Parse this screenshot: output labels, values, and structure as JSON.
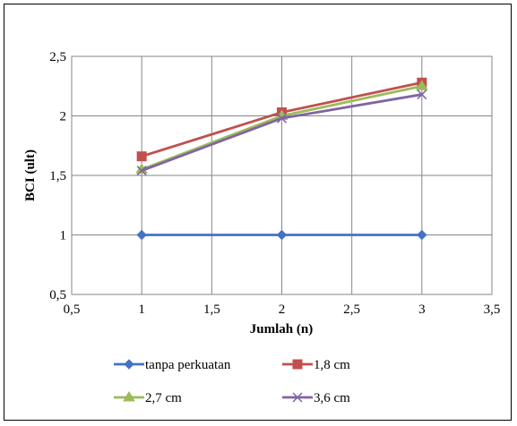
{
  "chart_data": {
    "type": "line",
    "title": "",
    "xlabel": "Jumlah (n)",
    "ylabel": "BCI (ult)",
    "xlim": [
      0.5,
      3.5
    ],
    "ylim": [
      0.5,
      2.5
    ],
    "xticks": [
      0.5,
      1,
      1.5,
      2,
      2.5,
      3,
      3.5
    ],
    "yticks": [
      0.5,
      1,
      1.5,
      2,
      2.5
    ],
    "xtick_labels": [
      "0,5",
      "1",
      "1,5",
      "2",
      "2,5",
      "3",
      "3,5"
    ],
    "ytick_labels": [
      "0,5",
      "1",
      "1,5",
      "2",
      "2,5"
    ],
    "grid": true,
    "legend_position": "bottom",
    "x": [
      1,
      2,
      3
    ],
    "series": [
      {
        "name": "tanpa perkuatan",
        "values": [
          1.0,
          1.0,
          1.0
        ],
        "color": "#4472C4",
        "marker": "diamond"
      },
      {
        "name": "1,8 cm",
        "values": [
          1.66,
          2.03,
          2.28
        ],
        "color": "#C0504D",
        "marker": "square"
      },
      {
        "name": "2,7 cm",
        "values": [
          1.55,
          2.0,
          2.25
        ],
        "color": "#9BBB59",
        "marker": "triangle"
      },
      {
        "name": "3,6 cm",
        "values": [
          1.54,
          1.98,
          2.18
        ],
        "color": "#8064A2",
        "marker": "x"
      }
    ]
  }
}
